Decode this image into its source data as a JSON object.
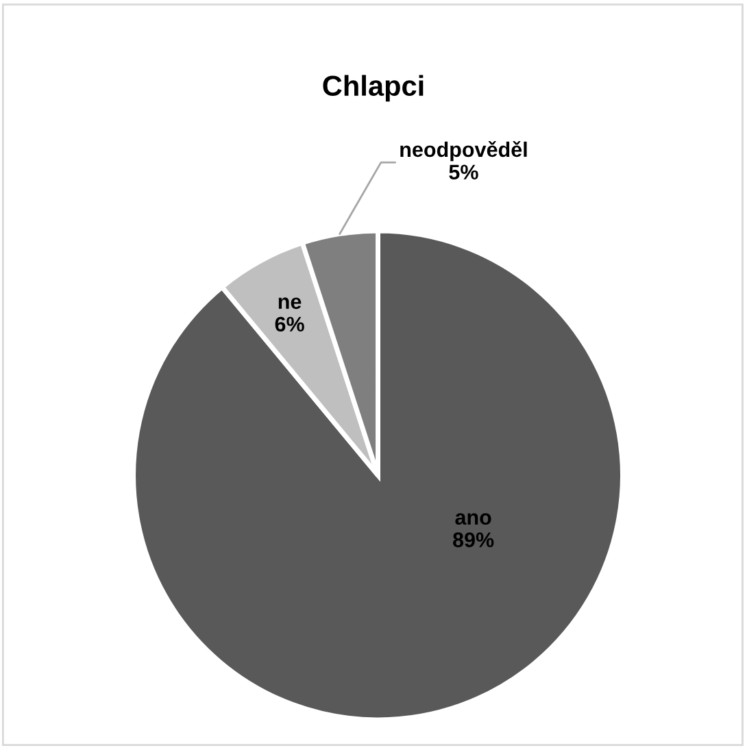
{
  "chart_data": {
    "type": "pie",
    "title": "Chlapci",
    "categories": [
      "ano",
      "ne",
      "neodpověděl"
    ],
    "values": [
      89,
      6,
      5
    ],
    "value_labels": [
      "89%",
      "6%",
      "5%"
    ],
    "colors": [
      "#595959",
      "#bfbfbf",
      "#7f7f7f"
    ],
    "legend": false
  }
}
